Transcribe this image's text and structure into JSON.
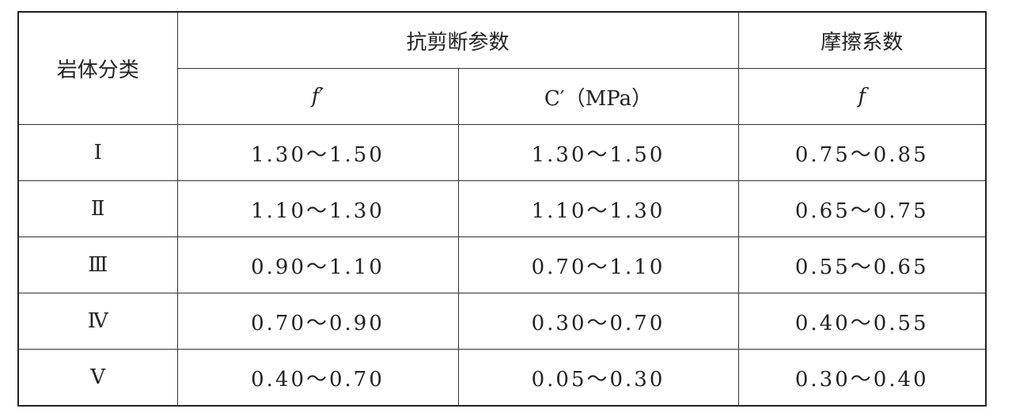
{
  "table": {
    "header": {
      "rock_class": "岩体分类",
      "shear_group": "抗剪断参数",
      "friction_group": "摩擦系数",
      "sub": [
        "f′",
        "C′（MPa）",
        "f"
      ]
    },
    "rows": [
      [
        "Ⅰ",
        "1.30～1.50",
        "1.30～1.50",
        "0.75～0.85"
      ],
      [
        "Ⅱ",
        "1.10～1.30",
        "1.10～1.30",
        "0.65～0.75"
      ],
      [
        "Ⅲ",
        "0.90～1.10",
        "0.70～1.10",
        "0.55～0.65"
      ],
      [
        "Ⅳ",
        "0.70～0.90",
        "0.30～0.70",
        "0.40～0.55"
      ],
      [
        "Ⅴ",
        "0.40～0.70",
        "0.05～0.30",
        "0.30～0.40"
      ]
    ]
  }
}
